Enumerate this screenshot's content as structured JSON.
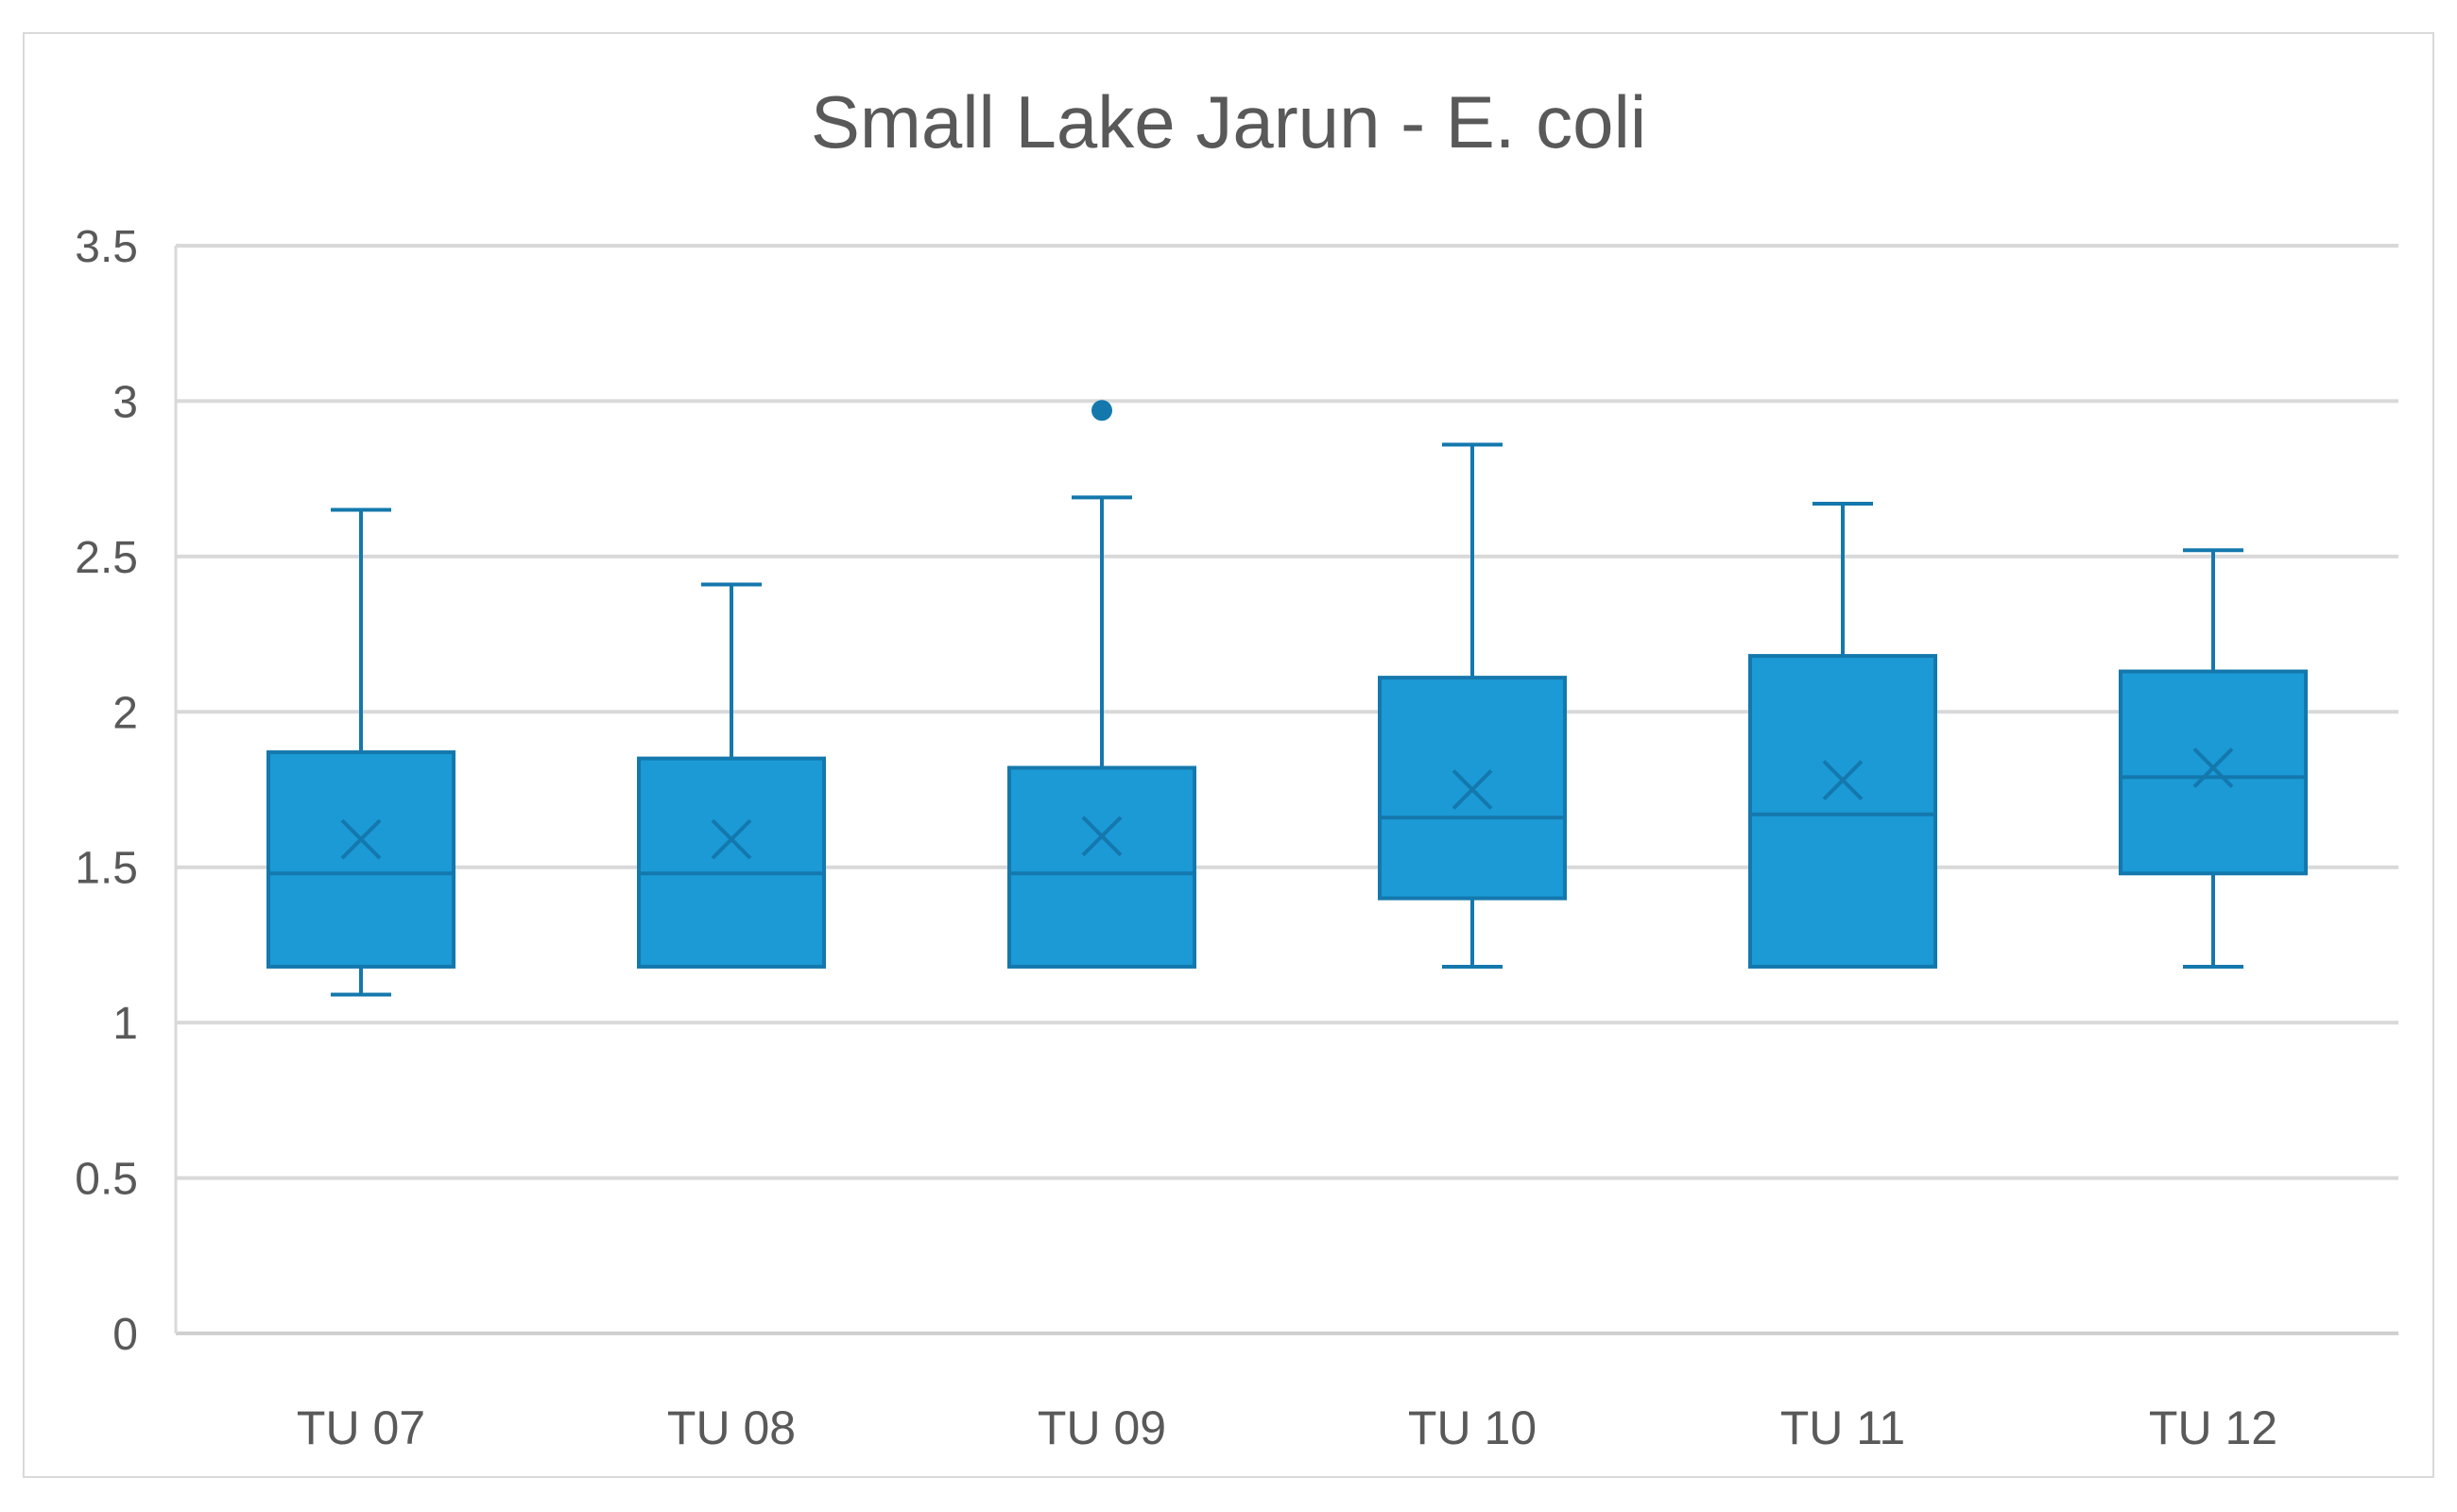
{
  "chart_data": {
    "type": "boxplot",
    "title": "Small Lake Jarun - E. coli",
    "xlabel": "",
    "ylabel": "",
    "ylim": [
      0,
      3.5
    ],
    "yticks": [
      "0",
      "0.5",
      "1",
      "1.5",
      "2",
      "2.5",
      "3",
      "3.5"
    ],
    "grid": true,
    "legend": "none",
    "color": "#1b9ad6",
    "stroke_color": "#1478ad",
    "categories": [
      "TU 07",
      "TU 08",
      "TU 09",
      "TU 10",
      "TU 11",
      "TU 12"
    ],
    "boxes": [
      {
        "min": 1.09,
        "q1": 1.18,
        "median": 1.48,
        "q3": 1.87,
        "max": 2.65,
        "mean": 1.59,
        "outliers": []
      },
      {
        "min": 1.18,
        "q1": 1.18,
        "median": 1.48,
        "q3": 1.85,
        "max": 2.41,
        "mean": 1.59,
        "outliers": []
      },
      {
        "min": 1.18,
        "q1": 1.18,
        "median": 1.48,
        "q3": 1.82,
        "max": 2.69,
        "mean": 1.6,
        "outliers": [
          2.97
        ]
      },
      {
        "min": 1.18,
        "q1": 1.4,
        "median": 1.66,
        "q3": 2.11,
        "max": 2.86,
        "mean": 1.75,
        "outliers": []
      },
      {
        "min": 1.18,
        "q1": 1.18,
        "median": 1.67,
        "q3": 2.18,
        "max": 2.67,
        "mean": 1.78,
        "outliers": []
      },
      {
        "min": 1.18,
        "q1": 1.48,
        "median": 1.79,
        "q3": 2.13,
        "max": 2.52,
        "mean": 1.82,
        "outliers": []
      }
    ]
  }
}
